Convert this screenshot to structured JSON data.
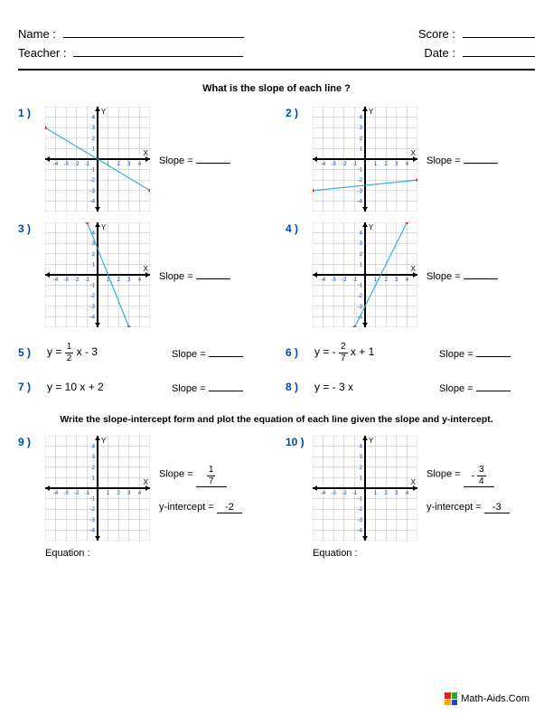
{
  "header": {
    "name_label": "Name :",
    "teacher_label": "Teacher :",
    "score_label": "Score :",
    "date_label": "Date :",
    "name_blank_width": 200,
    "teacher_blank_width": 188,
    "score_blank_width": 80,
    "date_blank_width": 80
  },
  "section1_title": "What is the slope of each line ?",
  "section2_title": "Write the slope-intercept form and plot the equation of each line given the slope and y-intercept.",
  "slope_label": "Slope =",
  "y_intercept_label": "y-intercept =",
  "equation_label": "Equation :",
  "graph_style": {
    "size": 116,
    "xmin": -5,
    "xmax": 5,
    "ymin": -5,
    "ymax": 5,
    "grid_color": "#bbbbbb",
    "axis_color": "#000000",
    "tick_color": "#0047ab",
    "tick_fontsize": 6,
    "line_color": "#2aa8d4",
    "point_color": "#e02020",
    "point_radius": 1.7,
    "line_width": 1.1,
    "axis_width": 2
  },
  "problems_graphs": [
    {
      "num": "1 )",
      "p1": [
        -5,
        3
      ],
      "p2": [
        5,
        -3
      ]
    },
    {
      "num": "2 )",
      "p1": [
        -5,
        -3
      ],
      "p2": [
        5,
        -2
      ]
    },
    {
      "num": "3 )",
      "p1": [
        -1,
        5
      ],
      "p2": [
        3,
        -5
      ]
    },
    {
      "num": "4 )",
      "p1": [
        -1,
        -5
      ],
      "p2": [
        4,
        5
      ]
    }
  ],
  "problems_eq": [
    {
      "num": "5 )",
      "prefix": "y =  ",
      "frac_n": "1",
      "frac_d": "2",
      "suffix": " x - 3"
    },
    {
      "num": "6 )",
      "prefix": "y = - ",
      "frac_n": "2",
      "frac_d": "7",
      "suffix": " x + 1"
    },
    {
      "num": "7 )",
      "text": "y =   10 x + 2"
    },
    {
      "num": "8 )",
      "text": "y =  - 3 x"
    }
  ],
  "problems_blank": [
    {
      "num": "9 )",
      "slope_sign": "",
      "slope_n": "1",
      "slope_d": "7",
      "yint": "-2"
    },
    {
      "num": "10  )",
      "slope_sign": "- ",
      "slope_n": "3",
      "slope_d": "4",
      "yint": "-3"
    }
  ],
  "footer_text": "Math-Aids.Com"
}
